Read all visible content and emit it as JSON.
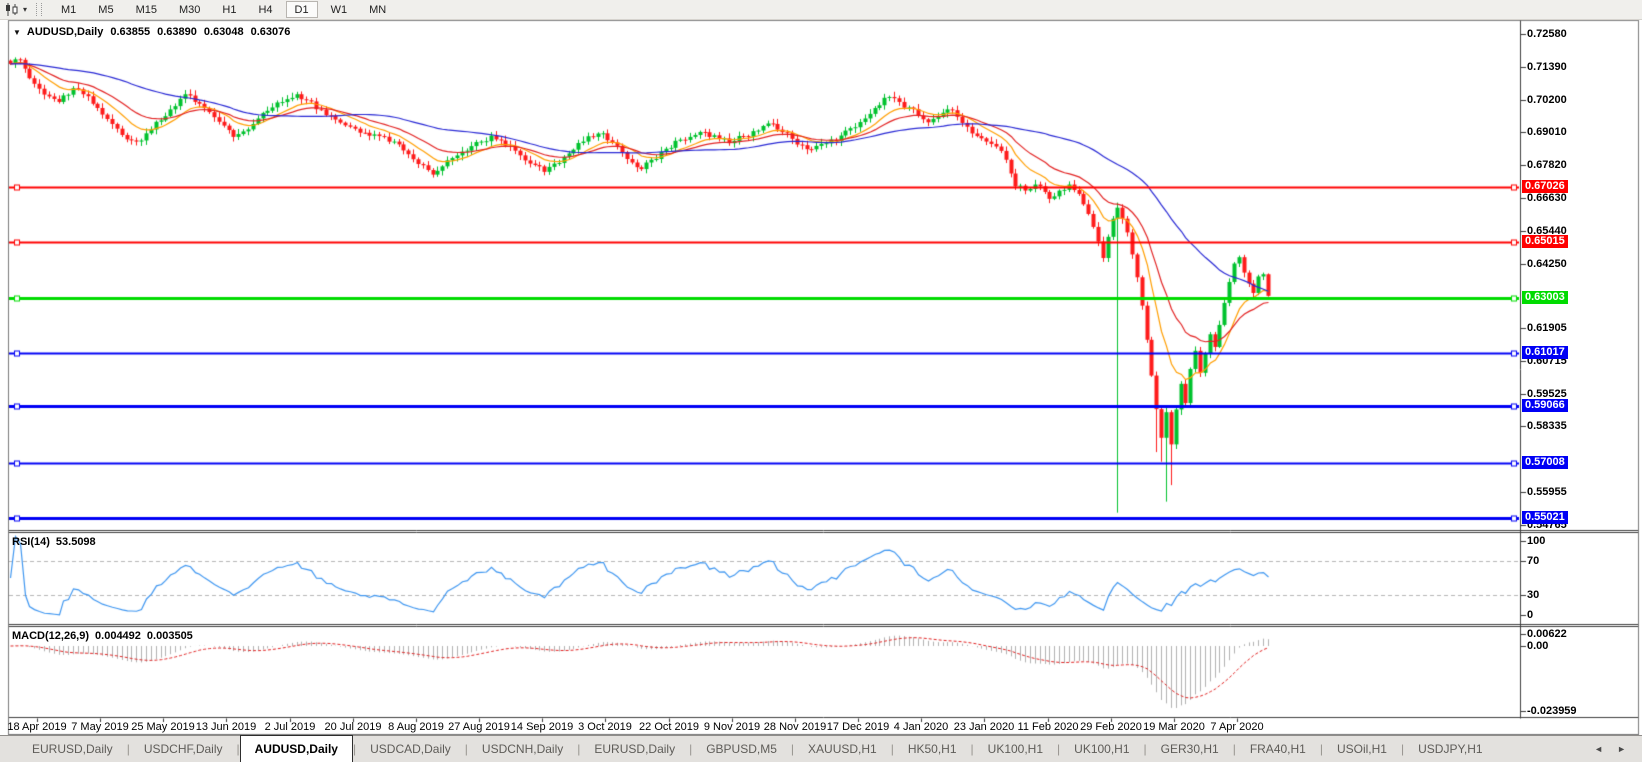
{
  "toolbar": {
    "chart_icon": "chart",
    "caret_icon": "▾",
    "timeframes": [
      {
        "label": "M1",
        "active": false
      },
      {
        "label": "M5",
        "active": false
      },
      {
        "label": "M15",
        "active": false
      },
      {
        "label": "M30",
        "active": false
      },
      {
        "label": "H1",
        "active": false
      },
      {
        "label": "H4",
        "active": false
      },
      {
        "label": "D1",
        "active": true
      },
      {
        "label": "W1",
        "active": false
      },
      {
        "label": "MN",
        "active": false
      }
    ]
  },
  "chart": {
    "title": {
      "collapse_icon": "▼",
      "symbol": "AUDUSD,Daily",
      "open": "0.63855",
      "high": "0.63890",
      "low": "0.63048",
      "close": "0.63076"
    },
    "price_axis": {
      "ticks": [
        "0.72580",
        "0.71390",
        "0.70200",
        "0.69010",
        "0.67820",
        "0.66630",
        "0.65440",
        "0.64250",
        "0.61905",
        "0.60715",
        "0.59525",
        "0.58335",
        "0.55955",
        "0.54765"
      ],
      "top_price": 0.7306,
      "bottom_price": 0.5457
    },
    "levels": [
      {
        "price": "0.67026",
        "value": 0.67026,
        "color": "#ff0000",
        "width": 2
      },
      {
        "price": "0.65015",
        "value": 0.65015,
        "color": "#ff0000",
        "width": 2
      },
      {
        "price": "0.63003",
        "value": 0.63003,
        "color": "#00dc00",
        "width": 3
      },
      {
        "price": "0.61017",
        "value": 0.61017,
        "color": "#0000f5",
        "width": 2
      },
      {
        "price": "0.59066",
        "value": 0.59066,
        "color": "#0000f5",
        "width": 3
      },
      {
        "price": "0.57008",
        "value": 0.57008,
        "color": "#0000f5",
        "width": 2
      },
      {
        "price": "0.55021",
        "value": 0.55021,
        "color": "#0000f5",
        "width": 3
      }
    ],
    "date_axis": [
      "18 Apr 2019",
      "7 May 2019",
      "25 May 2019",
      "13 Jun 2019",
      "2 Jul 2019",
      "20 Jul 2019",
      "8 Aug 2019",
      "27 Aug 2019",
      "14 Sep 2019",
      "3 Oct 2019",
      "22 Oct 2019",
      "9 Nov 2019",
      "28 Nov 2019",
      "17 Dec 2019",
      "4 Jan 2020",
      "23 Jan 2020",
      "11 Feb 2020",
      "29 Feb 2020",
      "19 Mar 2020",
      "7 Apr 2020"
    ],
    "candles": {
      "count": 260,
      "close_anchors": [
        [
          0,
          0.715
        ],
        [
          2,
          0.7165
        ],
        [
          4,
          0.7098
        ],
        [
          6,
          0.706
        ],
        [
          8,
          0.7032
        ],
        [
          10,
          0.7012
        ],
        [
          13,
          0.7062
        ],
        [
          15,
          0.704
        ],
        [
          18,
          0.699
        ],
        [
          20,
          0.695
        ],
        [
          23,
          0.6892
        ],
        [
          26,
          0.6868
        ],
        [
          28,
          0.6898
        ],
        [
          31,
          0.6945
        ],
        [
          33,
          0.6985
        ],
        [
          36,
          0.704
        ],
        [
          38,
          0.7012
        ],
        [
          41,
          0.6975
        ],
        [
          43,
          0.694
        ],
        [
          46,
          0.6885
        ],
        [
          48,
          0.6905
        ],
        [
          51,
          0.6952
        ],
        [
          54,
          0.6992
        ],
        [
          57,
          0.7022
        ],
        [
          59,
          0.704
        ],
        [
          61,
          0.7018
        ],
        [
          64,
          0.6985
        ],
        [
          67,
          0.6948
        ],
        [
          70,
          0.6922
        ],
        [
          73,
          0.69
        ],
        [
          76,
          0.6888
        ],
        [
          79,
          0.6868
        ],
        [
          82,
          0.6822
        ],
        [
          85,
          0.6782
        ],
        [
          87,
          0.6748
        ],
        [
          89,
          0.6778
        ],
        [
          91,
          0.6808
        ],
        [
          94,
          0.6835
        ],
        [
          97,
          0.6868
        ],
        [
          99,
          0.689
        ],
        [
          101,
          0.6872
        ],
        [
          103,
          0.6852
        ],
        [
          105,
          0.6818
        ],
        [
          107,
          0.6788
        ],
        [
          110,
          0.6758
        ],
        [
          112,
          0.6788
        ],
        [
          115,
          0.6825
        ],
        [
          118,
          0.6868
        ],
        [
          120,
          0.6885
        ],
        [
          122,
          0.6898
        ],
        [
          124,
          0.6865
        ],
        [
          126,
          0.683
        ],
        [
          128,
          0.6792
        ],
        [
          130,
          0.6768
        ],
        [
          132,
          0.6802
        ],
        [
          135,
          0.6842
        ],
        [
          138,
          0.6875
        ],
        [
          141,
          0.6892
        ],
        [
          143,
          0.6902
        ],
        [
          146,
          0.6878
        ],
        [
          148,
          0.6862
        ],
        [
          151,
          0.6888
        ],
        [
          154,
          0.6908
        ],
        [
          157,
          0.6932
        ],
        [
          159,
          0.6902
        ],
        [
          161,
          0.6878
        ],
        [
          163,
          0.6855
        ],
        [
          165,
          0.684
        ],
        [
          168,
          0.6862
        ],
        [
          171,
          0.689
        ],
        [
          174,
          0.692
        ],
        [
          176,
          0.6952
        ],
        [
          178,
          0.699
        ],
        [
          181,
          0.703
        ],
        [
          183,
          0.7012
        ],
        [
          185,
          0.6992
        ],
        [
          187,
          0.6962
        ],
        [
          189,
          0.6938
        ],
        [
          191,
          0.6958
        ],
        [
          193,
          0.6985
        ],
        [
          195,
          0.6958
        ],
        [
          197,
          0.6922
        ],
        [
          199,
          0.6888
        ],
        [
          201,
          0.6868
        ],
        [
          203,
          0.685
        ],
        [
          205,
          0.6802
        ],
        [
          206,
          0.6752
        ],
        [
          207,
          0.6705
        ],
        [
          209,
          0.669
        ],
        [
          211,
          0.6712
        ],
        [
          213,
          0.6685
        ],
        [
          214,
          0.666
        ],
        [
          216,
          0.669
        ],
        [
          218,
          0.6712
        ],
        [
          220,
          0.6678
        ],
        [
          221,
          0.664
        ],
        [
          222,
          0.6605
        ],
        [
          223,
          0.6558
        ],
        [
          224,
          0.6505
        ],
        [
          225,
          0.6445
        ],
        [
          226,
          0.6522
        ],
        [
          227,
          0.6588
        ],
        [
          228,
          0.6628
        ],
        [
          229,
          0.6588
        ],
        [
          230,
          0.6538
        ],
        [
          231,
          0.6458
        ],
        [
          232,
          0.6375
        ],
        [
          233,
          0.6272
        ],
        [
          234,
          0.6148
        ],
        [
          235,
          0.6018
        ],
        [
          236,
          0.5896
        ],
        [
          237,
          0.5792
        ],
        [
          238,
          0.5885
        ],
        [
          239,
          0.5768
        ],
        [
          240,
          0.5895
        ],
        [
          241,
          0.5988
        ],
        [
          242,
          0.5918
        ],
        [
          243,
          0.6042
        ],
        [
          244,
          0.6108
        ],
        [
          245,
          0.6028
        ],
        [
          246,
          0.6098
        ],
        [
          247,
          0.6168
        ],
        [
          248,
          0.6122
        ],
        [
          249,
          0.6202
        ],
        [
          250,
          0.6282
        ],
        [
          251,
          0.6358
        ],
        [
          252,
          0.6425
        ],
        [
          253,
          0.6448
        ],
        [
          254,
          0.6392
        ],
        [
          255,
          0.6352
        ],
        [
          256,
          0.6318
        ],
        [
          257,
          0.6378
        ],
        [
          258,
          0.6386
        ],
        [
          259,
          0.63076
        ]
      ],
      "wick_overrides": {
        "228": {
          "low": 0.552
        },
        "236": {
          "low": 0.574
        },
        "237": {
          "low": 0.5705
        },
        "238": {
          "low": 0.556
        },
        "239": {
          "low": 0.562
        },
        "241": {
          "low": 0.5875
        },
        "259": {
          "high": 0.6389,
          "low": 0.63048
        }
      },
      "up_color": "#00c22e",
      "down_color": "#fe1b1b"
    },
    "moving_averages": [
      {
        "period": 10,
        "type": "ema",
        "color": "#ff9e00"
      },
      {
        "period": 20,
        "type": "ema",
        "color": "#e22222"
      },
      {
        "period": 45,
        "type": "sma",
        "color": "#2727d4"
      }
    ]
  },
  "rsi": {
    "name": "RSI(14)",
    "value": "53.5098",
    "period": 14,
    "axis_ticks": [
      100,
      70,
      30,
      0
    ],
    "dashed_levels": [
      70,
      30
    ],
    "line_color": "#3e96f0"
  },
  "macd": {
    "name": "MACD(12,26,9)",
    "value": "0.004492",
    "signal_value": "0.003505",
    "fast": 12,
    "slow": 26,
    "signal": 9,
    "axis_ticks": [
      "0.00622",
      "0.00",
      "-0.023959"
    ],
    "histogram_color": "#b0b0b0",
    "signal_color": "#e02020"
  },
  "tabs": {
    "items": [
      {
        "label": "EURUSD,Daily",
        "active": false
      },
      {
        "label": "USDCHF,Daily",
        "active": false
      },
      {
        "label": "AUDUSD,Daily",
        "active": true
      },
      {
        "label": "USDCAD,Daily",
        "active": false
      },
      {
        "label": "USDCNH,Daily",
        "active": false
      },
      {
        "label": "EURUSD,Daily",
        "active": false
      },
      {
        "label": "GBPUSD,M5",
        "active": false
      },
      {
        "label": "XAUUSD,H1",
        "active": false
      },
      {
        "label": "HK50,H1",
        "active": false
      },
      {
        "label": "UK100,H1",
        "active": false
      },
      {
        "label": "UK100,H1",
        "active": false
      },
      {
        "label": "GER30,H1",
        "active": false
      },
      {
        "label": "FRA40,H1",
        "active": false
      },
      {
        "label": "USOil,H1",
        "active": false
      },
      {
        "label": "USDJPY,H1",
        "active": false
      }
    ],
    "divider": "|",
    "scroll_left_icon": "◄",
    "scroll_right_icon": "►"
  }
}
